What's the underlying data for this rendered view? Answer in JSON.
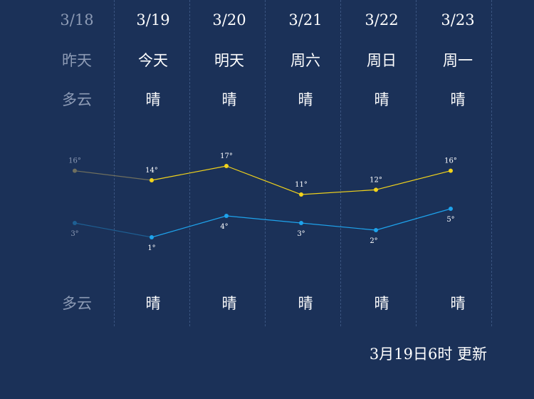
{
  "days": [
    {
      "date": "3/18",
      "day": "昨天",
      "cond_day": "多云",
      "cond_night": "多云"
    },
    {
      "date": "3/19",
      "day": "今天",
      "cond_day": "晴",
      "cond_night": "晴"
    },
    {
      "date": "3/20",
      "day": "明天",
      "cond_day": "晴",
      "cond_night": "晴"
    },
    {
      "date": "3/21",
      "day": "周六",
      "cond_day": "晴",
      "cond_night": "晴"
    },
    {
      "date": "3/22",
      "day": "周日",
      "cond_day": "晴",
      "cond_night": "晴"
    },
    {
      "date": "3/23",
      "day": "周一",
      "cond_day": "晴",
      "cond_night": "晴"
    }
  ],
  "chart_data": {
    "type": "line",
    "categories": [
      "3/18",
      "3/19",
      "3/20",
      "3/21",
      "3/22",
      "3/23"
    ],
    "series": [
      {
        "values": [
          16,
          14,
          17,
          11,
          12,
          16
        ],
        "labels": [
          "16°",
          "14°",
          "17°",
          "11°",
          "12°",
          "16°"
        ]
      },
      {
        "values": [
          3,
          1,
          4,
          3,
          2,
          5
        ],
        "labels": [
          "3°",
          "1°",
          "4°",
          "3°",
          "2°",
          "5°"
        ]
      }
    ]
  },
  "colors": {
    "high": "#f2d31b",
    "low": "#1ea3ec",
    "past_high": "#6f6f5e",
    "past_low": "#1e5f93",
    "past_text": "#8d9bb5"
  },
  "update_time": "3月19日6时 更新"
}
